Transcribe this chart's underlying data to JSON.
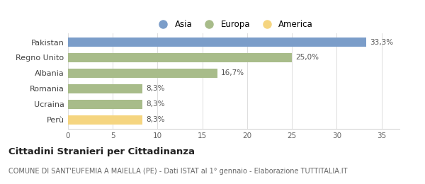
{
  "categories": [
    "Perù",
    "Ucraina",
    "Romania",
    "Albania",
    "Regno Unito",
    "Pakistan"
  ],
  "values": [
    8.3,
    8.3,
    8.3,
    16.7,
    25.0,
    33.3
  ],
  "labels": [
    "8,3%",
    "8,3%",
    "8,3%",
    "16,7%",
    "25,0%",
    "33,3%"
  ],
  "colors": [
    "#f5d580",
    "#a8bc8a",
    "#a8bc8a",
    "#a8bc8a",
    "#a8bc8a",
    "#7b9dc9"
  ],
  "legend_items": [
    {
      "label": "Asia",
      "color": "#7b9dc9"
    },
    {
      "label": "Europa",
      "color": "#a8bc8a"
    },
    {
      "label": "America",
      "color": "#f5d580"
    }
  ],
  "xlim": [
    0,
    37
  ],
  "xticks": [
    0,
    5,
    10,
    15,
    20,
    25,
    30,
    35
  ],
  "title": "Cittadini Stranieri per Cittadinanza",
  "subtitle": "COMUNE DI SANT'EUFEMIA A MAIELLA (PE) - Dati ISTAT al 1° gennaio - Elaborazione TUTTITALIA.IT",
  "title_fontsize": 9.5,
  "subtitle_fontsize": 7.0,
  "background_color": "#ffffff",
  "bar_height": 0.6,
  "label_fontsize": 7.5,
  "ytick_fontsize": 8.0,
  "xtick_fontsize": 7.5,
  "legend_fontsize": 8.5
}
